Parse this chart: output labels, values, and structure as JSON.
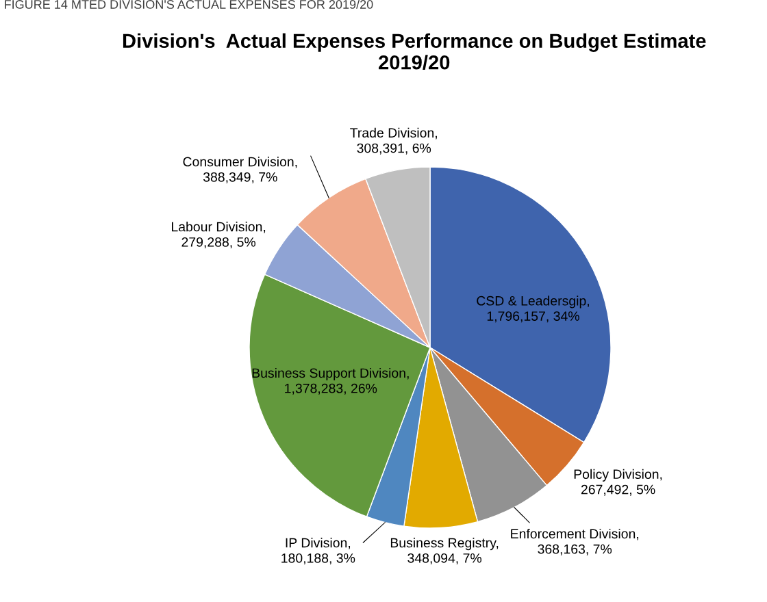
{
  "chart_data": {
    "type": "pie",
    "title": "Division's  Actual Expenses Performance on Budget Estimate 2019/20",
    "categories": [
      "CSD & Leadersgip",
      "Policy Division",
      "Enforcement Division",
      "Business Registry",
      "IP Division",
      "Business Support Division",
      "Labour Division",
      "Consumer Division",
      "Trade Division"
    ],
    "values": [
      1796157,
      267492,
      368163,
      348094,
      180188,
      1378283,
      279288,
      388349,
      308391
    ],
    "value_labels": [
      ",\n1,796,157, 34%",
      ",\n267,492, 5%",
      ",\n368,163, 7%",
      ",\n348,094, 7%",
      ",\n180,188, 3%",
      ",\n1,378,283, 26%",
      ",\n279,288, 5%",
      ",\n388,349, 7%",
      ",\n308,391, 6%"
    ],
    "colors": [
      "#3f64ad",
      "#d5702c",
      "#929292",
      "#e2aa00",
      "#4f87c0",
      "#63993d",
      "#8fa3d4",
      "#f0a98a",
      "#bfbfbf"
    ],
    "annotations": [
      "FIGURE 14 MTED DIVISION'S ACTUAL EXPENSES FOR 2019/20"
    ],
    "legend": false
  }
}
